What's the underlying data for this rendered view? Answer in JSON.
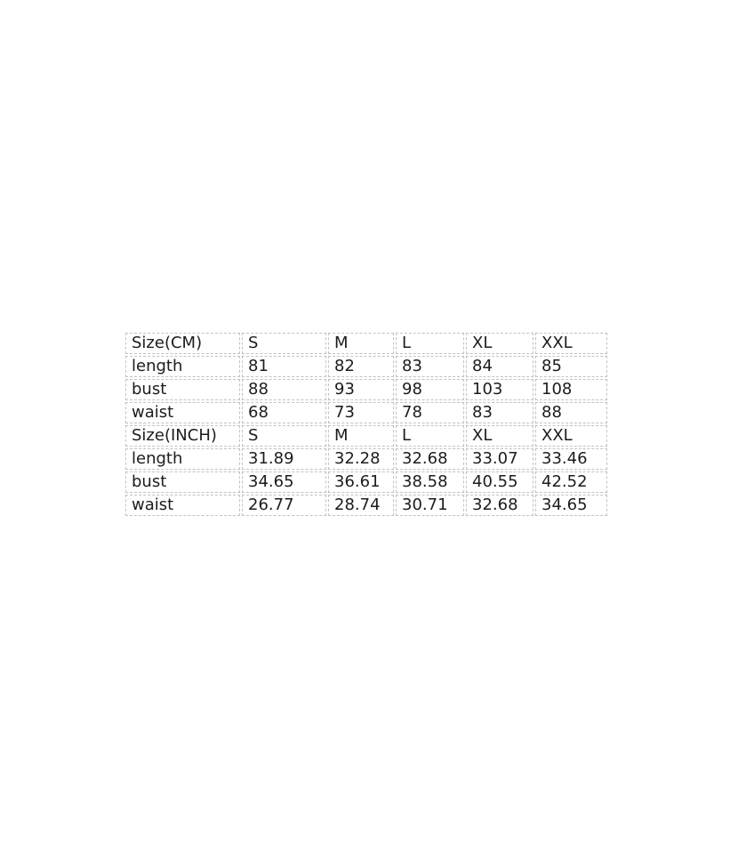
{
  "colors": {
    "background": "#ffffff",
    "border": "#c2c2c2",
    "text": "#1c1c1c"
  },
  "tables": [
    {
      "id": "size-chart-cm",
      "unit": "CM",
      "header": [
        "Size(CM)",
        "S",
        "M",
        "L",
        "XL",
        "XXL"
      ],
      "rows": [
        [
          "length",
          "81",
          "82",
          "83",
          "84",
          "85"
        ],
        [
          "bust",
          "88",
          "93",
          "98",
          "103",
          "108"
        ],
        [
          "waist",
          "68",
          "73",
          "78",
          "83",
          "88"
        ]
      ]
    },
    {
      "id": "size-chart-inch",
      "unit": "INCH",
      "header": [
        "Size(INCH)",
        "S",
        "M",
        "L",
        "XL",
        "XXL"
      ],
      "rows": [
        [
          "length",
          "31.89",
          "32.28",
          "32.68",
          "33.07",
          "33.46"
        ],
        [
          "bust",
          "34.65",
          "36.61",
          "38.58",
          "40.55",
          "42.52"
        ],
        [
          "waist",
          "26.77",
          "28.74",
          "30.71",
          "32.68",
          "34.65"
        ]
      ]
    }
  ],
  "chart_data": {
    "type": "table",
    "title": "",
    "tables": [
      {
        "columns": [
          "Size(CM)",
          "S",
          "M",
          "L",
          "XL",
          "XXL"
        ],
        "rows": [
          [
            "length",
            81,
            82,
            83,
            84,
            85
          ],
          [
            "bust",
            88,
            93,
            98,
            103,
            108
          ],
          [
            "waist",
            68,
            73,
            78,
            83,
            88
          ]
        ]
      },
      {
        "columns": [
          "Size(INCH)",
          "S",
          "M",
          "L",
          "XL",
          "XXL"
        ],
        "rows": [
          [
            "length",
            31.89,
            32.28,
            32.68,
            33.07,
            33.46
          ],
          [
            "bust",
            34.65,
            36.61,
            38.58,
            40.55,
            42.52
          ],
          [
            "waist",
            26.77,
            28.74,
            30.71,
            32.68,
            34.65
          ]
        ]
      }
    ]
  }
}
